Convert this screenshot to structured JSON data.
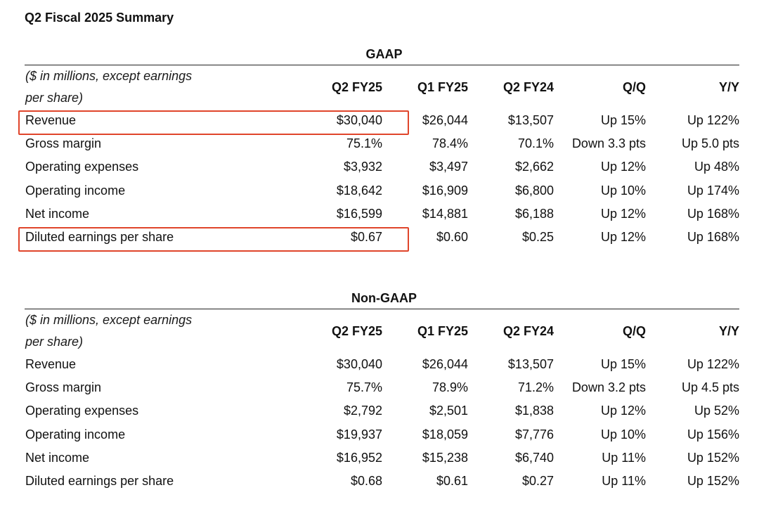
{
  "title": "Q2 Fiscal 2025 Summary",
  "accent_color": "#e0452b",
  "columns": [
    "($ in millions, except earnings per share)",
    "Q2 FY25",
    "Q1 FY25",
    "Q2 FY24",
    "Q/Q",
    "Y/Y"
  ],
  "gaap": {
    "heading": "GAAP",
    "rows": [
      {
        "label": "Revenue",
        "values": [
          "$30,040",
          "$26,044",
          "$13,507",
          "Up 15%",
          "Up 122%"
        ],
        "highlighted": true
      },
      {
        "label": "Gross margin",
        "values": [
          "75.1%",
          "78.4%",
          "70.1%",
          "Down 3.3 pts",
          "Up 5.0 pts"
        ]
      },
      {
        "label": "Operating expenses",
        "values": [
          "$3,932",
          "$3,497",
          "$2,662",
          "Up 12%",
          "Up 48%"
        ]
      },
      {
        "label": "Operating income",
        "values": [
          "$18,642",
          "$16,909",
          "$6,800",
          "Up 10%",
          "Up 174%"
        ]
      },
      {
        "label": "Net income",
        "values": [
          "$16,599",
          "$14,881",
          "$6,188",
          "Up 12%",
          "Up 168%"
        ]
      },
      {
        "label": "Diluted earnings per share",
        "values": [
          "$0.67",
          "$0.60",
          "$0.25",
          "Up 12%",
          "Up 168%"
        ],
        "highlighted": true
      }
    ]
  },
  "non_gaap": {
    "heading": "Non-GAAP",
    "rows": [
      {
        "label": "Revenue",
        "values": [
          "$30,040",
          "$26,044",
          "$13,507",
          "Up 15%",
          "Up 122%"
        ]
      },
      {
        "label": "Gross margin",
        "values": [
          "75.7%",
          "78.9%",
          "71.2%",
          "Down 3.2 pts",
          "Up 4.5 pts"
        ]
      },
      {
        "label": "Operating expenses",
        "values": [
          "$2,792",
          "$2,501",
          "$1,838",
          "Up 12%",
          "Up 52%"
        ]
      },
      {
        "label": "Operating income",
        "values": [
          "$19,937",
          "$18,059",
          "$7,776",
          "Up 10%",
          "Up 156%"
        ]
      },
      {
        "label": "Net income",
        "values": [
          "$16,952",
          "$15,238",
          "$6,740",
          "Up 11%",
          "Up 152%"
        ]
      },
      {
        "label": "Diluted earnings per share",
        "values": [
          "$0.68",
          "$0.61",
          "$0.27",
          "Up 11%",
          "Up 152%"
        ]
      }
    ]
  }
}
